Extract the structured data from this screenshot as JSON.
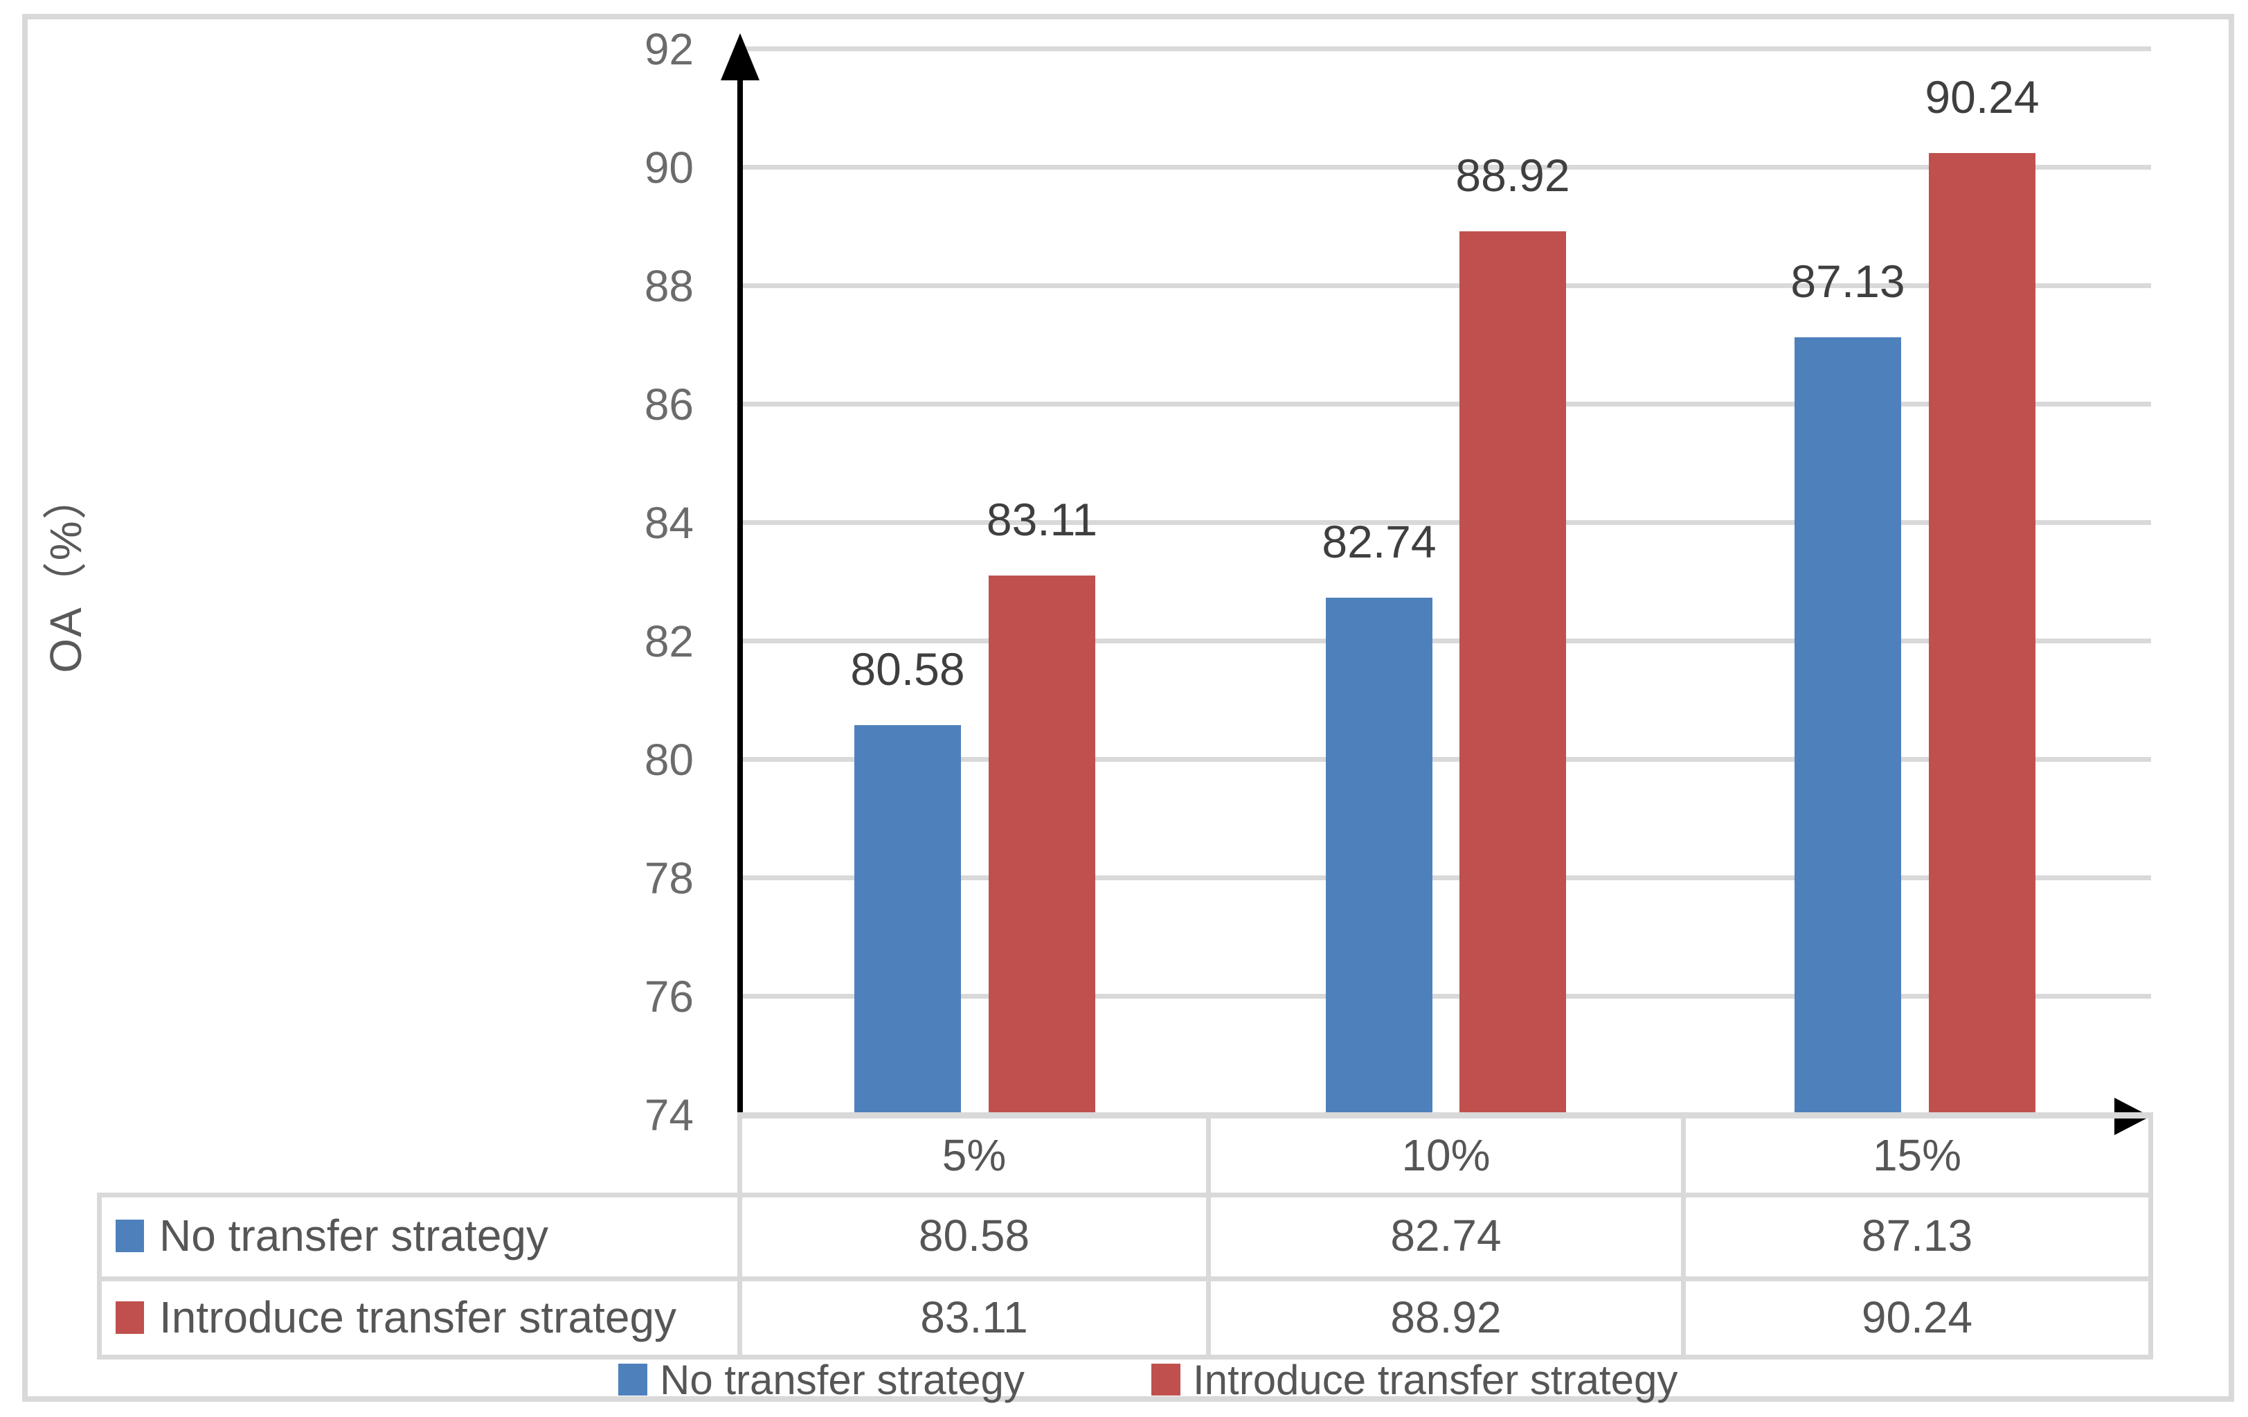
{
  "chart_data": {
    "type": "bar",
    "title": "",
    "categories": [
      "5%",
      "10%",
      "15%"
    ],
    "series": [
      {
        "name": "No transfer strategy",
        "color": "#4E81BC",
        "values": [
          80.58,
          82.74,
          87.13
        ]
      },
      {
        "name": "Introduce transfer strategy",
        "color": "#C0504D",
        "values": [
          83.11,
          88.92,
          90.24
        ]
      }
    ],
    "xlabel": "",
    "ylabel": "OA（%）",
    "ylim": [
      74,
      92
    ],
    "ytick_step": 2,
    "grid": true,
    "data_labels": true,
    "legend_position": "bottom"
  },
  "figure": {
    "y_axis_title": "OA（%）",
    "y_ticks": [
      "92",
      "90",
      "88",
      "86",
      "84",
      "82",
      "80",
      "78",
      "76",
      "74"
    ]
  },
  "table": {
    "category_header": [
      "5%",
      "10%",
      "15%"
    ],
    "rows": [
      {
        "label": "No transfer strategy",
        "swatch_color": "#4E81BC",
        "values": [
          "80.58",
          "82.74",
          "87.13"
        ]
      },
      {
        "label": "Introduce transfer strategy",
        "swatch_color": "#C0504D",
        "values": [
          "83.11",
          "88.92",
          "90.24"
        ]
      }
    ]
  },
  "legend": {
    "items": [
      {
        "label": "No transfer strategy",
        "color": "#4E81BC"
      },
      {
        "label": "Introduce transfer strategy",
        "color": "#C0504D"
      }
    ]
  },
  "colors": {
    "series_blue": "#4E81BC",
    "series_red": "#C0504D",
    "gridline": "#D9D9D9",
    "axis_line": "#000000",
    "text": "#595959"
  }
}
